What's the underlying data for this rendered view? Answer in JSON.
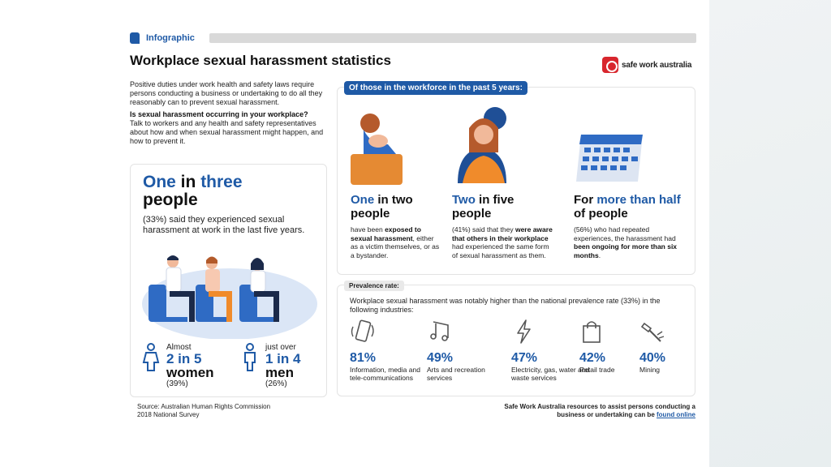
{
  "header": {
    "tag": "Infographic",
    "title": "Workplace sexual harassment statistics",
    "logo_text": "safe work australia"
  },
  "intro": {
    "para1": "Positive duties under work health and safety laws require persons conducting a business or undertaking to do all they reasonably can to prevent sexual harassment.",
    "question": "Is sexual harassment occurring in your workplace?",
    "para2": "Talk to workers and any health and safety representatives about how and when sexual harassment might happen, and how to prevent it."
  },
  "left_card": {
    "stat_pre": "One",
    "stat_mid": " in ",
    "stat_blue": "three",
    "stat_line2": "people",
    "desc": "(33%) said they experienced sexual harassment at work in the last five years.",
    "women_pre": "Almost",
    "women_stat": "2 in 5",
    "women_label": "women",
    "women_pct": "(39%)",
    "men_pre": "just over",
    "men_stat": "1 in 4",
    "men_label": "men",
    "men_pct": "(26%)"
  },
  "workforce": {
    "header": "Of those in the workforce in the past 5 years:",
    "col1_blue": "One",
    "col1_mid": " in two",
    "col1_line2": "people",
    "col1_desc_a": "have been ",
    "col1_desc_b": "exposed to sexual harassment",
    "col1_desc_c": ", either as a victim themselves, or as a bystander.",
    "col2_blue": "Two",
    "col2_mid": " in five",
    "col2_line2": "people",
    "col2_desc_a": "(41%) said that they ",
    "col2_desc_b": "were aware that others in their workplace",
    "col2_desc_c": " had experienced the same form of sexual harassment as them.",
    "col3_a": "For ",
    "col3_blue": "more than half",
    "col3_c": " of people",
    "col3_desc_a": "(56%) who had repeated experiences, the harassment had ",
    "col3_desc_b": "been ongoing for more than six months",
    "col3_desc_c": "."
  },
  "prevalence": {
    "tag": "Prevalence rate:",
    "desc": "Workplace sexual harassment was notably higher than the national prevalence rate (33%) in the following industries:",
    "industries": [
      {
        "pct": "81%",
        "label": "Information, media and tele-communications",
        "icon": "phone-icon"
      },
      {
        "pct": "49%",
        "label": "Arts and recreation services",
        "icon": "music-icon"
      },
      {
        "pct": "47%",
        "label": "Electricity, gas, water and waste services",
        "icon": "lightning-icon"
      },
      {
        "pct": "42%",
        "label": "Retail trade",
        "icon": "shopping-bag-icon"
      },
      {
        "pct": "40%",
        "label": "Mining",
        "icon": "drill-icon"
      }
    ]
  },
  "footer": {
    "source_line1": "Source: Australian Human Rights Commission",
    "source_line2": "2018 National Survey",
    "resources_text": "Safe Work Australia resources to assist persons conducting a business or undertaking can be ",
    "resources_link": "found online"
  }
}
